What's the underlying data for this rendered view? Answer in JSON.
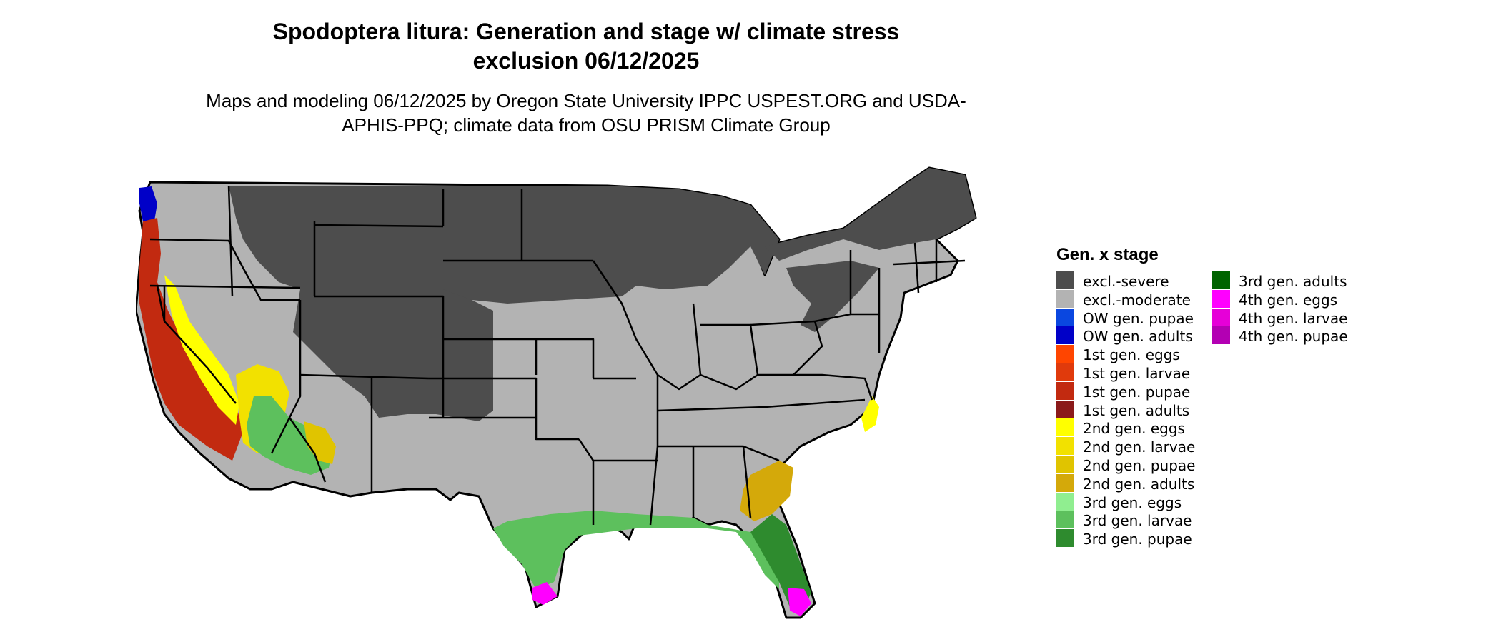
{
  "title": "Spodoptera litura: Generation and stage w/ climate stress exclusion 06/12/2025",
  "subtitle": "Maps and modeling 06/12/2025 by Oregon State University IPPC USPEST.ORG and USDA-APHIS-PPQ; climate data from OSU PRISM Climate Group",
  "legend": {
    "title": "Gen. x stage",
    "columns": [
      [
        {
          "label": "excl.-severe",
          "color": "#4d4d4d"
        },
        {
          "label": "excl.-moderate",
          "color": "#b3b3b3"
        },
        {
          "label": "OW gen. pupae",
          "color": "#0a47e0"
        },
        {
          "label": "OW gen. adults",
          "color": "#0000c8"
        },
        {
          "label": "1st gen. eggs",
          "color": "#ff4500"
        },
        {
          "label": "1st gen. larvae",
          "color": "#e03a0c"
        },
        {
          "label": "1st gen. pupae",
          "color": "#c22a10"
        },
        {
          "label": "1st gen. adults",
          "color": "#8b1a1a"
        },
        {
          "label": "2nd gen. eggs",
          "color": "#ffff00"
        },
        {
          "label": "2nd gen. larvae",
          "color": "#f2e100"
        },
        {
          "label": "2nd gen. pupae",
          "color": "#e0c400"
        },
        {
          "label": "2nd gen. adults",
          "color": "#d4a90a"
        },
        {
          "label": "3rd gen. eggs",
          "color": "#90ee90"
        },
        {
          "label": "3rd gen. larvae",
          "color": "#5dc05d"
        },
        {
          "label": "3rd gen. pupae",
          "color": "#2e8b2e"
        }
      ],
      [
        {
          "label": "3rd gen. adults",
          "color": "#006400"
        },
        {
          "label": "4th gen. eggs",
          "color": "#ff00ff"
        },
        {
          "label": "4th gen. larvae",
          "color": "#e600d8"
        },
        {
          "label": "4th gen. pupae",
          "color": "#b300b3"
        }
      ]
    ]
  },
  "map": {
    "region": "conterminous United States",
    "state_border_color": "#000000"
  }
}
